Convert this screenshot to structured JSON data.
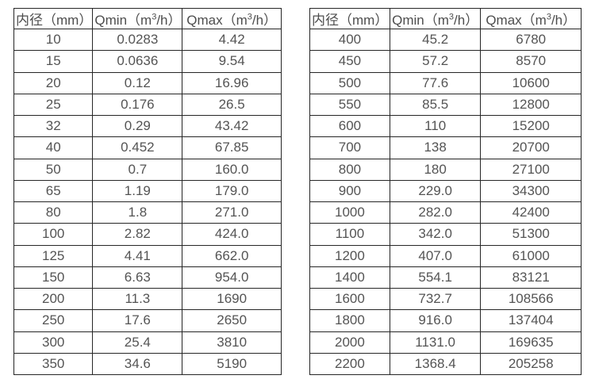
{
  "page": {
    "background": "#ffffff",
    "border_color": "#262626",
    "text_color": "#545454",
    "description": "Two side-by-side specification tables listing flow ranges (Qmin/Qmax) per inner diameter for a flow meter"
  },
  "tables": [
    {
      "name": "flow-range-table-small-diameters",
      "headers": [
        [
          {
            "t": "内径（mm）"
          }
        ],
        [
          {
            "t": "Qmin（m"
          },
          {
            "t": "3",
            "sup": true
          },
          {
            "t": "/h）"
          }
        ],
        [
          {
            "t": "Qmax（m"
          },
          {
            "t": "3",
            "sup": true
          },
          {
            "t": "/h）"
          }
        ]
      ],
      "rows": [
        [
          "10",
          "0.0283",
          "4.42"
        ],
        [
          "15",
          "0.0636",
          "9.54"
        ],
        [
          "20",
          "0.12",
          "16.96"
        ],
        [
          "25",
          "0.176",
          "26.5"
        ],
        [
          "32",
          "0.29",
          "43.42"
        ],
        [
          "40",
          "0.452",
          "67.85"
        ],
        [
          "50",
          "0.7",
          "160.0"
        ],
        [
          "65",
          "1.19",
          "179.0"
        ],
        [
          "80",
          "1.8",
          "271.0"
        ],
        [
          "100",
          "2.82",
          "424.0"
        ],
        [
          "125",
          "4.41",
          "662.0"
        ],
        [
          "150",
          "6.63",
          "954.0"
        ],
        [
          "200",
          "11.3",
          "1690"
        ],
        [
          "250",
          "17.6",
          "2650"
        ],
        [
          "300",
          "25.4",
          "3810"
        ],
        [
          "350",
          "34.6",
          "5190"
        ]
      ]
    },
    {
      "name": "flow-range-table-large-diameters",
      "headers": [
        [
          {
            "t": "内径（mm）"
          }
        ],
        [
          {
            "t": "Qmin（m"
          },
          {
            "t": "3",
            "sup": true
          },
          {
            "t": "/h）"
          }
        ],
        [
          {
            "t": "Qmax（m"
          },
          {
            "t": "3",
            "sup": true
          },
          {
            "t": "/h）"
          }
        ]
      ],
      "rows": [
        [
          "400",
          "45.2",
          "6780"
        ],
        [
          "450",
          "57.2",
          "8570"
        ],
        [
          "500",
          "77.6",
          "10600"
        ],
        [
          "550",
          "85.5",
          "12800"
        ],
        [
          "600",
          "110",
          "15200"
        ],
        [
          "700",
          "138",
          "20700"
        ],
        [
          "800",
          "180",
          "27100"
        ],
        [
          "900",
          "229.0",
          "34300"
        ],
        [
          "1000",
          "282.0",
          "42400"
        ],
        [
          "1100",
          "342.0",
          "51300"
        ],
        [
          "1200",
          "407.0",
          "61000"
        ],
        [
          "1400",
          "554.1",
          "83121"
        ],
        [
          "1600",
          "732.7",
          "108566"
        ],
        [
          "1800",
          "916.0",
          "137404"
        ],
        [
          "2000",
          "1131.0",
          "169635"
        ],
        [
          "2200",
          "1368.4",
          "205258"
        ]
      ]
    }
  ]
}
